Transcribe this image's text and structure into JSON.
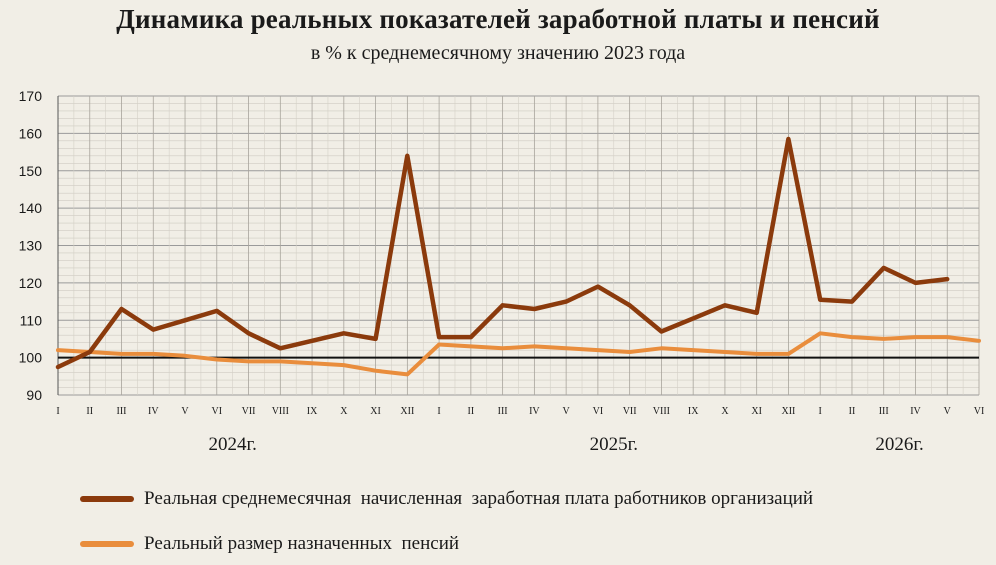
{
  "chart_data": {
    "type": "line",
    "title": "Динамика реальных показателей заработной платы и пенсий",
    "subtitle": "в % к среднемесячному значению 2023 года",
    "x": [
      "I",
      "II",
      "III",
      "IV",
      "V",
      "VI",
      "VII",
      "VIII",
      "IX",
      "X",
      "XI",
      "XII",
      "I",
      "II",
      "III",
      "IV",
      "V",
      "VI",
      "VII",
      "VIII",
      "IX",
      "X",
      "XI",
      "XII",
      "I",
      "II",
      "III",
      "IV",
      "V",
      "VI"
    ],
    "years": [
      {
        "label": "2024г.",
        "center_index": 5.5
      },
      {
        "label": "2025г.",
        "center_index": 17.5
      },
      {
        "label": "2026г.",
        "center_index": 26.5
      }
    ],
    "ylim": [
      90,
      170
    ],
    "yticks": [
      90,
      100,
      110,
      120,
      130,
      140,
      150,
      160,
      170
    ],
    "reference_line": 100,
    "grid": true,
    "legend_position": "bottom",
    "series": [
      {
        "name": "Реальная среднемесячная  начисленная  заработная плата работников организаций",
        "color": "#8b3a0c",
        "values": [
          97.5,
          101.5,
          113,
          107.5,
          110,
          112.5,
          106.5,
          102.5,
          104.5,
          106.5,
          105,
          154,
          105.5,
          105.5,
          114,
          113,
          115,
          119,
          114,
          107,
          110.5,
          114,
          112,
          158.5,
          115.5,
          115,
          124,
          120,
          121,
          null
        ]
      },
      {
        "name": "Реальный размер назначенных  пенсий",
        "color": "#e98d3c",
        "values": [
          102,
          101.5,
          101,
          101,
          100.5,
          99.5,
          99,
          99,
          98.5,
          98,
          96.5,
          95.5,
          103.5,
          103,
          102.5,
          103,
          102.5,
          102,
          101.5,
          102.5,
          102,
          101.5,
          101,
          101,
          106.5,
          105.5,
          105,
          105.5,
          105.5,
          104.5
        ]
      }
    ]
  }
}
